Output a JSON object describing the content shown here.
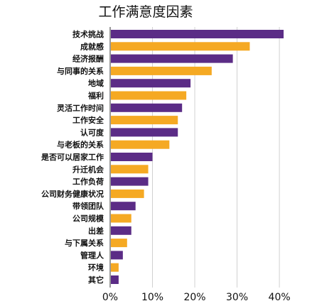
{
  "chart_data": {
    "type": "bar",
    "orientation": "horizontal",
    "title": "工作满意度因素",
    "xlabel": "",
    "ylabel": "",
    "categories": [
      "技术挑战",
      "成就感",
      "经济报酬",
      "与同事的关系",
      "地域",
      "福利",
      "灵活工作时间",
      "工作安全",
      "认可度",
      "与老板的关系",
      "是否可以居家工作",
      "升迁机会",
      "工作负荷",
      "公司财务健康状况",
      "带领团队",
      "公司规模",
      "出差",
      "与下属关系",
      "管理人",
      "环境",
      "其它"
    ],
    "values": [
      41,
      33,
      29,
      24,
      19,
      18,
      17,
      16,
      16,
      14,
      10,
      9,
      9,
      8,
      6,
      5,
      5,
      4,
      3,
      2,
      2
    ],
    "bar_colors": [
      "#5b2c86",
      "#f5a923",
      "#5b2c86",
      "#f5a923",
      "#5b2c86",
      "#f5a923",
      "#5b2c86",
      "#f5a923",
      "#5b2c86",
      "#f5a923",
      "#5b2c86",
      "#f5a923",
      "#5b2c86",
      "#f5a923",
      "#5b2c86",
      "#f5a923",
      "#5b2c86",
      "#f5a923",
      "#5b2c86",
      "#f5a923",
      "#5b2c86"
    ],
    "xlim": [
      0,
      42
    ],
    "x_ticks": [
      0,
      10,
      20,
      30,
      40
    ],
    "x_tick_labels": [
      "0%",
      "10%",
      "20%",
      "30%",
      "40%"
    ],
    "grid": true,
    "legend": "none"
  }
}
